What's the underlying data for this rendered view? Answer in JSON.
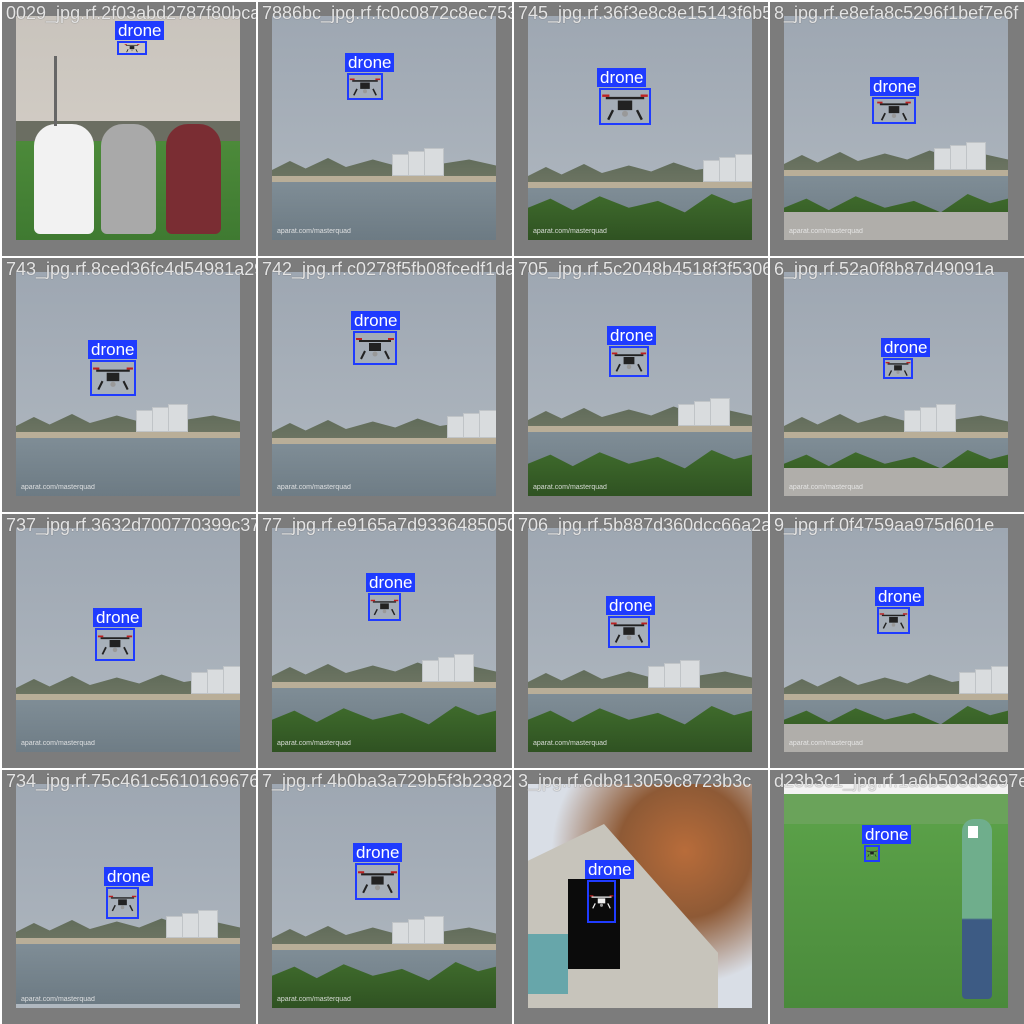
{
  "grid": {
    "label_text": "drone",
    "box_color": "#1f3bff",
    "tiles": [
      {
        "filename": "0029_jpg.rf.2f03abd2787f80bca6cbc8a8c8ec75330e5c",
        "label": "drone",
        "scene": "field"
      },
      {
        "filename": "7886bc_jpg.rf.fc0c0872c8ec75330e5c",
        "label": "drone",
        "scene": "river"
      },
      {
        "filename": "745_jpg.rf.36f3e8c8e15143f6b5c858",
        "label": "drone",
        "scene": "river"
      },
      {
        "filename": "8_jpg.rf.e8efa8c5296f1bef7e6f",
        "label": "drone",
        "scene": "river"
      },
      {
        "filename": "743_jpg.rf.8ced36fc4d54981a29c2c2f75f8b08fcedf1da7c0c2",
        "label": "drone",
        "scene": "river"
      },
      {
        "filename": "742_jpg.rf.c0278f5fb08fcedf1da7c0c2",
        "label": "drone",
        "scene": "river"
      },
      {
        "filename": "705_jpg.rf.5c2048b4518f3f53060",
        "label": "drone",
        "scene": "river"
      },
      {
        "filename": "6_jpg.rf.52a0f8b87d49091a",
        "label": "drone",
        "scene": "river"
      },
      {
        "filename": "737_jpg.rf.3632d700770399c372fd40e9165a7d93364850",
        "label": "drone",
        "scene": "river"
      },
      {
        "filename": "77_jpg.rf.e9165a7d9336485050e1",
        "label": "drone",
        "scene": "river"
      },
      {
        "filename": "706_jpg.rf.5b887d360dcc66a2a56",
        "label": "drone",
        "scene": "river"
      },
      {
        "filename": "9_jpg.rf.0f4759aa975d601e",
        "label": "drone",
        "scene": "river"
      },
      {
        "filename": "734_jpg.rf.75c461c56101696761f554b0b8a729b5f3b2",
        "label": "drone",
        "scene": "river"
      },
      {
        "filename": "7_jpg.rf.4b0ba3a729b5f3b2382f2b2",
        "label": "drone",
        "scene": "river"
      },
      {
        "filename": "3_jpg.rf.6db813059c8723b3c",
        "label": "drone",
        "scene": "house"
      },
      {
        "filename": "d23b3c1_jpg.rf.1a6b503d3697e5a",
        "label": "drone",
        "scene": "grass"
      }
    ],
    "watermark": "aparat.com/masterquad"
  }
}
